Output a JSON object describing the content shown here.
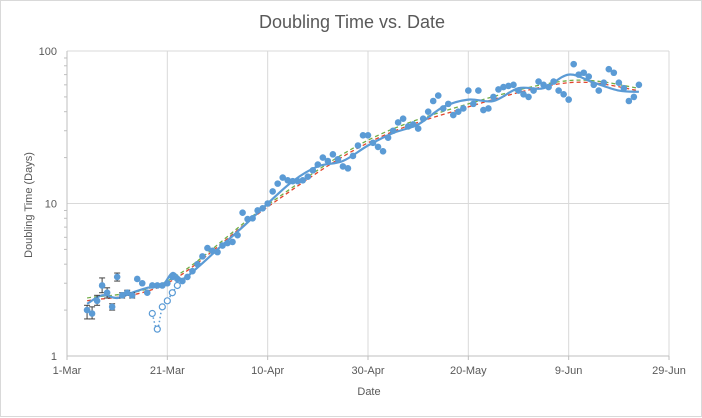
{
  "chart_data": {
    "type": "scatter",
    "title": "Doubling Time vs. Date",
    "xlabel": "Date",
    "ylabel": "Doubling Time (Days)",
    "y_scale": "log",
    "ylim": [
      1,
      100
    ],
    "xlim": [
      "2020-03-01",
      "2020-06-29"
    ],
    "x_ticks": [
      {
        "date": "2020-03-01",
        "label": "1-Mar"
      },
      {
        "date": "2020-03-21",
        "label": "21-Mar"
      },
      {
        "date": "2020-04-10",
        "label": "10-Apr"
      },
      {
        "date": "2020-04-30",
        "label": "30-Apr"
      },
      {
        "date": "2020-05-20",
        "label": "20-May"
      },
      {
        "date": "2020-06-09",
        "label": "9-Jun"
      },
      {
        "date": "2020-06-29",
        "label": "29-Jun"
      }
    ],
    "y_ticks": [
      {
        "value": 1,
        "label": "1"
      },
      {
        "value": 10,
        "label": "10"
      },
      {
        "value": 100,
        "label": "100"
      }
    ],
    "grid": true,
    "legend": "none",
    "colors": {
      "points": "#5b9bd5",
      "smooth_line": "#5b9bd5",
      "trend_red": "#e2462c",
      "trend_green": "#70ad47",
      "error_bars": "#404040",
      "grid": "#d9d9d9"
    },
    "series": [
      {
        "kind": "scatter_with_error",
        "x": [
          "2020-03-05",
          "2020-03-06",
          "2020-03-07",
          "2020-03-08",
          "2020-03-09",
          "2020-03-10",
          "2020-03-11",
          "2020-03-12",
          "2020-03-13",
          "2020-03-14"
        ],
        "y": [
          2.0,
          1.9,
          2.3,
          2.9,
          2.6,
          2.1,
          3.3,
          2.5,
          2.6,
          2.5
        ],
        "err_low": [
          1.75,
          1.75,
          2.15,
          2.6,
          2.4,
          2.0,
          3.1,
          2.4,
          2.5,
          2.4
        ],
        "err_high": [
          2.15,
          2.1,
          2.5,
          3.25,
          2.8,
          2.2,
          3.5,
          2.6,
          2.7,
          2.6
        ]
      },
      {
        "kind": "scatter",
        "x": [
          "2020-03-15",
          "2020-03-16",
          "2020-03-17",
          "2020-03-18",
          "2020-03-19",
          "2020-03-20",
          "2020-03-21",
          "2020-03-22",
          "2020-03-23",
          "2020-03-24",
          "2020-03-25",
          "2020-03-26",
          "2020-03-27",
          "2020-03-28",
          "2020-03-29",
          "2020-03-30",
          "2020-03-31",
          "2020-04-01",
          "2020-04-02",
          "2020-04-03",
          "2020-04-04",
          "2020-04-05",
          "2020-04-06",
          "2020-04-07",
          "2020-04-08",
          "2020-04-09",
          "2020-04-10",
          "2020-04-11",
          "2020-04-12",
          "2020-04-13",
          "2020-04-14",
          "2020-04-15",
          "2020-04-16",
          "2020-04-17",
          "2020-04-18",
          "2020-04-19",
          "2020-04-20",
          "2020-04-21",
          "2020-04-22",
          "2020-04-23",
          "2020-04-24",
          "2020-04-25",
          "2020-04-26",
          "2020-04-27",
          "2020-04-28",
          "2020-04-29",
          "2020-04-30",
          "2020-05-01",
          "2020-05-02",
          "2020-05-03",
          "2020-05-04",
          "2020-05-05",
          "2020-05-06",
          "2020-05-07",
          "2020-05-08",
          "2020-05-09",
          "2020-05-10",
          "2020-05-11",
          "2020-05-12",
          "2020-05-13",
          "2020-05-14",
          "2020-05-15",
          "2020-05-16",
          "2020-05-17",
          "2020-05-18",
          "2020-05-19",
          "2020-05-20",
          "2020-05-21",
          "2020-05-22",
          "2020-05-23",
          "2020-05-24",
          "2020-05-25",
          "2020-05-26",
          "2020-05-27",
          "2020-05-28",
          "2020-05-29",
          "2020-05-30",
          "2020-05-31",
          "2020-06-01",
          "2020-06-02",
          "2020-06-03",
          "2020-06-04",
          "2020-06-05",
          "2020-06-06",
          "2020-06-07",
          "2020-06-08",
          "2020-06-09",
          "2020-06-10",
          "2020-06-11",
          "2020-06-12",
          "2020-06-13",
          "2020-06-14",
          "2020-06-15",
          "2020-06-16",
          "2020-06-17",
          "2020-06-18",
          "2020-06-19",
          "2020-06-20",
          "2020-06-21",
          "2020-06-22",
          "2020-06-23"
        ],
        "y": [
          3.2,
          3.0,
          2.6,
          2.9,
          2.9,
          2.9,
          3.0,
          3.3,
          3.2,
          3.1,
          3.3,
          3.6,
          4.0,
          4.5,
          5.1,
          4.9,
          4.8,
          5.3,
          5.5,
          5.6,
          6.2,
          8.7,
          7.9,
          8.0,
          9.0,
          9.3,
          10.0,
          12.0,
          13.5,
          14.8,
          14.2,
          14.0,
          14.0,
          14.2,
          15.0,
          16.5,
          18.0,
          20.0,
          19.0,
          21.0,
          19.5,
          17.5,
          17.0,
          20.5,
          24.0,
          28.0,
          28.0,
          25.0,
          23.5,
          22.0,
          27.0,
          30.0,
          34.0,
          36.0,
          32.0,
          33.0,
          31.0,
          36.0,
          40.0,
          47.0,
          51.0,
          42.0,
          45.0,
          38.0,
          40.0,
          42.0,
          55.0,
          45.0,
          55.0,
          41.0,
          42.0,
          50.0,
          56.0,
          58.0,
          59.0,
          60.0,
          55.0,
          52.0,
          50.0,
          55.0,
          63.0,
          60.0,
          58.0,
          63.0,
          55.0,
          52.0,
          48.0,
          82.0,
          70.0,
          72.0,
          68.0,
          60.0,
          55.0,
          62.0,
          76.0,
          72.0,
          62.0,
          57.0,
          47.0,
          50.0,
          60.0
        ]
      },
      {
        "kind": "smooth_line",
        "x": [
          "2020-03-05",
          "2020-03-08",
          "2020-03-11",
          "2020-03-14",
          "2020-03-17",
          "2020-03-20",
          "2020-03-22",
          "2020-03-24",
          "2020-03-27",
          "2020-03-31",
          "2020-04-05",
          "2020-04-10",
          "2020-04-15",
          "2020-04-20",
          "2020-04-25",
          "2020-04-30",
          "2020-05-05",
          "2020-05-10",
          "2020-05-15",
          "2020-05-20",
          "2020-05-25",
          "2020-05-30",
          "2020-06-04",
          "2020-06-09",
          "2020-06-14",
          "2020-06-19",
          "2020-06-23"
        ],
        "y": [
          2.2,
          2.5,
          2.4,
          2.6,
          2.8,
          2.9,
          3.5,
          3.2,
          3.8,
          5.0,
          7.0,
          10.0,
          14.0,
          17.5,
          19.0,
          24.0,
          29.0,
          33.0,
          43.0,
          48.0,
          47.0,
          57.0,
          57.0,
          70.0,
          62.0,
          55.0,
          54.0
        ]
      },
      {
        "kind": "dotted_line_markers",
        "x": [
          "2020-03-18",
          "2020-03-19",
          "2020-03-20",
          "2020-03-21",
          "2020-03-22",
          "2020-03-23"
        ],
        "y": [
          1.9,
          1.5,
          2.1,
          2.3,
          2.6,
          2.9
        ]
      },
      {
        "kind": "trend_dashed_red",
        "x": [
          "2020-03-05",
          "2020-03-21",
          "2020-04-10",
          "2020-04-30",
          "2020-05-20",
          "2020-06-09",
          "2020-06-23"
        ],
        "y": [
          2.3,
          3.0,
          9.5,
          25.0,
          43.0,
          62.0,
          55.0
        ]
      },
      {
        "kind": "trend_dashed_green",
        "x": [
          "2020-03-05",
          "2020-03-21",
          "2020-04-10",
          "2020-04-30",
          "2020-05-20",
          "2020-06-09",
          "2020-06-23"
        ],
        "y": [
          2.4,
          3.1,
          9.8,
          26.0,
          45.0,
          64.0,
          57.0
        ]
      }
    ]
  }
}
